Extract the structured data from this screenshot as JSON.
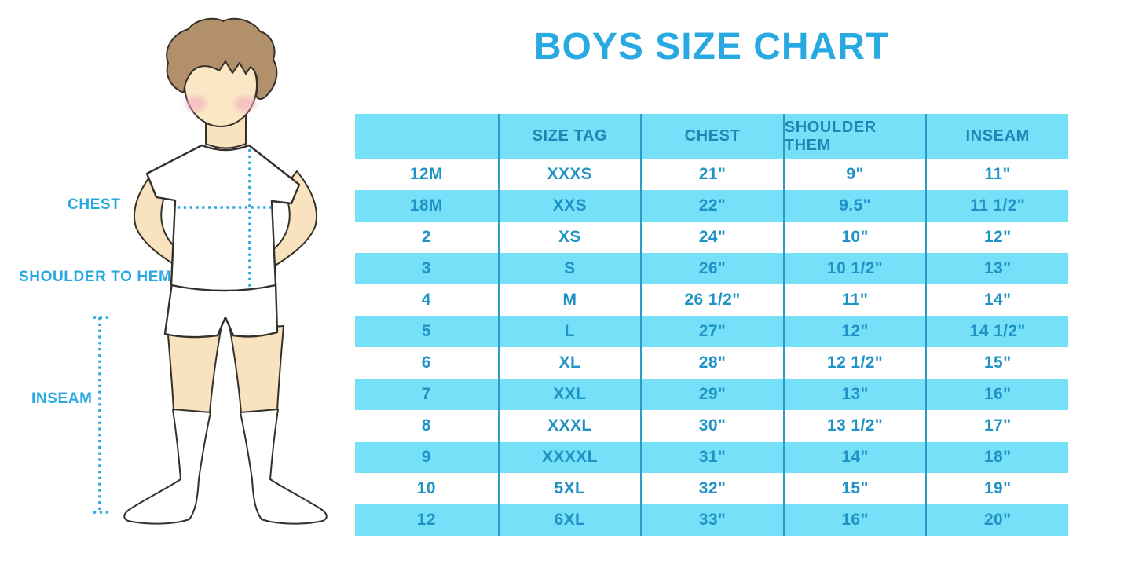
{
  "title": "BOYS SIZE CHART",
  "colors": {
    "accent": "#29A9E1",
    "stripe": "#76E0F8",
    "divider": "#2A9CC8",
    "cell_text": "#2093C6",
    "header_text": "#1F86B3"
  },
  "figure": {
    "description": "cartoon boy in white t-shirt, shorts and knee socks with dotted measurement guides",
    "colors": {
      "skin": "#F9E3BE",
      "hair": "#B2906B",
      "blush": "#F2AEC1",
      "outline": "#35302A",
      "garment": "#FFFFFF"
    },
    "labels": {
      "chest": "CHEST",
      "shoulder_to_hem": "SHOULDER TO HEM",
      "inseam": "INSEAM"
    }
  },
  "chart_data": {
    "type": "table",
    "title": "BOYS SIZE CHART",
    "columns": [
      "",
      "SIZE TAG",
      "CHEST",
      "SHOULDER THEM",
      "INSEAM"
    ],
    "rows": [
      [
        "12M",
        "XXXS",
        "21\"",
        "9\"",
        "11\""
      ],
      [
        "18M",
        "XXS",
        "22\"",
        "9.5\"",
        "11 1/2\""
      ],
      [
        "2",
        "XS",
        "24\"",
        "10\"",
        "12\""
      ],
      [
        "3",
        "S",
        "26\"",
        "10 1/2\"",
        "13\""
      ],
      [
        "4",
        "M",
        "26 1/2\"",
        "11\"",
        "14\""
      ],
      [
        "5",
        "L",
        "27\"",
        "12\"",
        "14 1/2\""
      ],
      [
        "6",
        "XL",
        "28\"",
        "12 1/2\"",
        "15\""
      ],
      [
        "7",
        "XXL",
        "29\"",
        "13\"",
        "16\""
      ],
      [
        "8",
        "XXXL",
        "30\"",
        "13 1/2\"",
        "17\""
      ],
      [
        "9",
        "XXXXL",
        "31\"",
        "14\"",
        "18\""
      ],
      [
        "10",
        "5XL",
        "32\"",
        "15\"",
        "19\""
      ],
      [
        "12",
        "6XL",
        "33\"",
        "16\"",
        "20\""
      ]
    ],
    "row_striping": "header and even data rows (18M,3,5,7,9,12) on light blue; others white",
    "legend_position": "none",
    "grid": "vertical dividers only"
  }
}
